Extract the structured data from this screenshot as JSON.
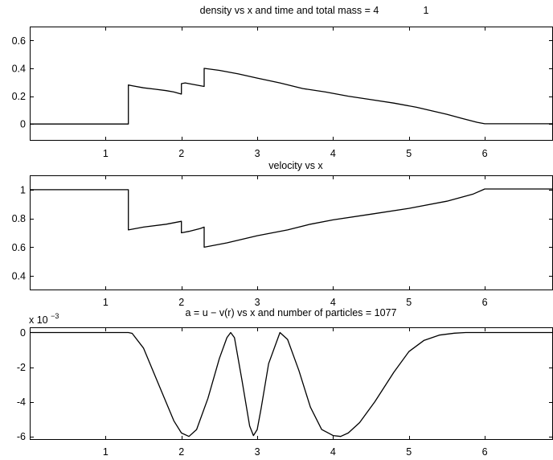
{
  "chart_data": [
    {
      "type": "line",
      "title": "density  vs x and time and total mass  = 4",
      "title_extra": "1",
      "xlim": [
        0,
        6.9
      ],
      "ylim": [
        -0.12,
        0.7
      ],
      "xticks": [
        1,
        2,
        3,
        4,
        5,
        6
      ],
      "xtick_labels": [
        "1",
        "2",
        "3",
        "4",
        "5",
        "6"
      ],
      "yticks": [
        0,
        0.2,
        0.4,
        0.6
      ],
      "ytick_labels": [
        "0",
        "0.2",
        "0.4",
        "0.6"
      ],
      "grid": false,
      "series": [
        {
          "x": [
            0,
            1.3,
            1.3,
            1.35,
            1.5,
            1.65,
            1.8,
            1.9,
            2.0,
            2.0,
            2.05,
            2.15,
            2.3,
            2.3,
            2.5,
            2.75,
            3.0,
            3.3,
            3.6,
            3.9,
            4.2,
            4.5,
            4.8,
            5.1,
            5.3,
            5.5,
            5.7,
            5.9,
            6.0,
            6.9
          ],
          "y": [
            0,
            0,
            0.28,
            0.275,
            0.26,
            0.25,
            0.24,
            0.23,
            0.215,
            0.29,
            0.295,
            0.285,
            0.27,
            0.4,
            0.385,
            0.36,
            0.33,
            0.295,
            0.255,
            0.23,
            0.2,
            0.175,
            0.15,
            0.12,
            0.095,
            0.07,
            0.04,
            0.012,
            0.002,
            0.002
          ]
        }
      ]
    },
    {
      "type": "line",
      "title": "velocity vs x",
      "xlim": [
        0,
        6.9
      ],
      "ylim": [
        0.3,
        1.1
      ],
      "xticks": [
        1,
        2,
        3,
        4,
        5,
        6
      ],
      "xtick_labels": [
        "1",
        "2",
        "3",
        "4",
        "5",
        "6"
      ],
      "yticks": [
        0.4,
        0.6,
        0.8,
        1
      ],
      "ytick_labels": [
        "0.4",
        "0.6",
        "0.8",
        "1"
      ],
      "grid": false,
      "series": [
        {
          "x": [
            0,
            1.3,
            1.3,
            1.5,
            1.8,
            2.0,
            2.0,
            2.1,
            2.25,
            2.3,
            2.3,
            2.6,
            3.0,
            3.4,
            3.7,
            4.0,
            4.5,
            5.0,
            5.5,
            5.85,
            6.0,
            6.9
          ],
          "y": [
            1,
            1,
            0.72,
            0.74,
            0.76,
            0.78,
            0.7,
            0.71,
            0.73,
            0.74,
            0.6,
            0.63,
            0.68,
            0.72,
            0.76,
            0.79,
            0.83,
            0.87,
            0.92,
            0.97,
            1.005,
            1.005
          ]
        }
      ]
    },
    {
      "type": "line",
      "title": "a = u − v(r) vs x and number of particles  = 1077",
      "multiplier": "x 10",
      "multiplier_exp": "−3",
      "xlim": [
        0,
        6.9
      ],
      "ylim": [
        -6.2,
        0.3
      ],
      "xticks": [
        1,
        2,
        3,
        4,
        5,
        6
      ],
      "xtick_labels": [
        "1",
        "2",
        "3",
        "4",
        "5",
        "6"
      ],
      "yticks": [
        -6,
        -4,
        -2,
        0
      ],
      "ytick_labels": [
        "-6",
        "-4",
        "-2",
        "0"
      ],
      "grid": false,
      "series": [
        {
          "x": [
            0,
            1.3,
            1.35,
            1.5,
            1.7,
            1.9,
            2.0,
            2.1,
            2.2,
            2.35,
            2.5,
            2.6,
            2.65,
            2.7,
            2.8,
            2.9,
            2.95,
            3.0,
            3.05,
            3.15,
            3.3,
            3.4,
            3.55,
            3.7,
            3.85,
            4.0,
            4.1,
            4.2,
            4.35,
            4.55,
            4.8,
            5.0,
            5.2,
            5.4,
            5.6,
            5.75,
            6.0,
            6.9
          ],
          "y": [
            0,
            0,
            -0.05,
            -0.9,
            -3.0,
            -5.1,
            -5.8,
            -6.0,
            -5.6,
            -3.8,
            -1.5,
            -0.3,
            0,
            -0.3,
            -2.8,
            -5.4,
            -5.95,
            -5.6,
            -4.4,
            -1.8,
            0,
            -0.4,
            -2.2,
            -4.3,
            -5.6,
            -5.95,
            -6.0,
            -5.8,
            -5.2,
            -4.0,
            -2.3,
            -1.1,
            -0.45,
            -0.15,
            -0.04,
            0,
            0,
            0
          ]
        }
      ]
    }
  ]
}
